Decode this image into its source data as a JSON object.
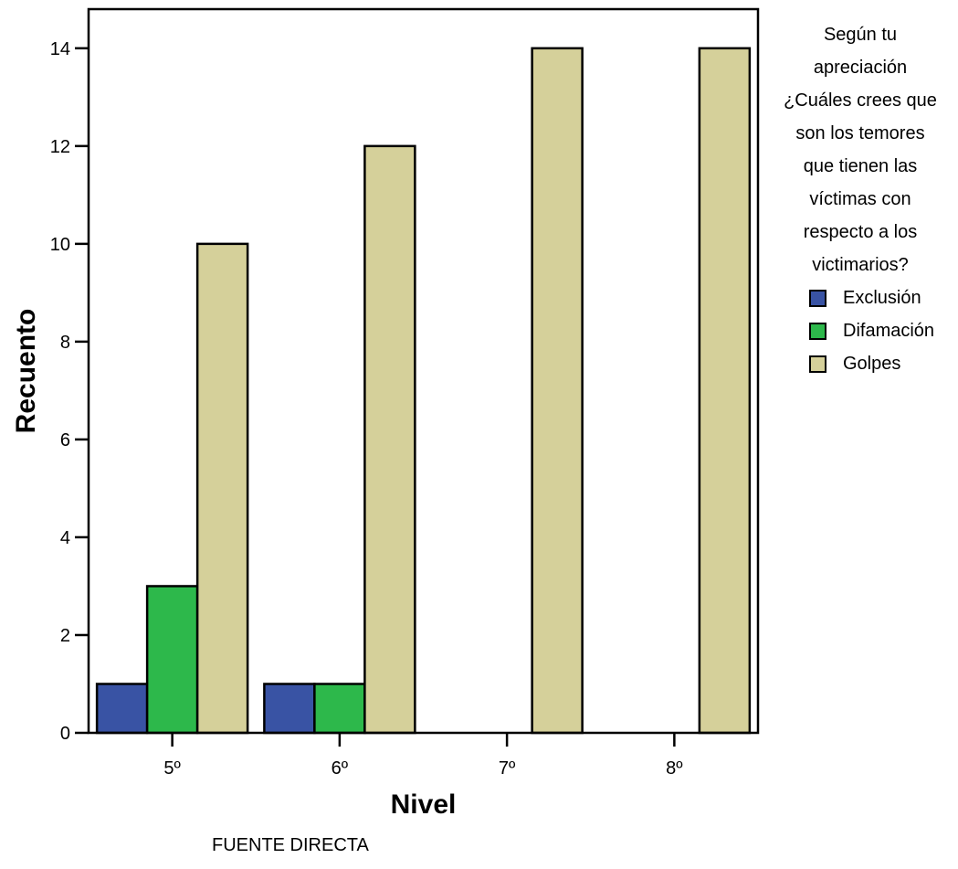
{
  "chart_data": {
    "type": "bar",
    "categories": [
      "5º",
      "6º",
      "7º",
      "8º"
    ],
    "series": [
      {
        "name": "Exclusión",
        "color": "#3953a4",
        "values": [
          1,
          1,
          0,
          0
        ]
      },
      {
        "name": "Difamación",
        "color": "#2db84b",
        "values": [
          3,
          1,
          0,
          0
        ]
      },
      {
        "name": "Golpes",
        "color": "#d5d09a",
        "values": [
          10,
          12,
          14,
          14
        ]
      }
    ],
    "xlabel": "Nivel",
    "ylabel": "Recuento",
    "ylim": [
      0,
      14.8
    ],
    "yticks": [
      0,
      2,
      4,
      6,
      8,
      10,
      12,
      14
    ],
    "grid": false,
    "legend_placement": "right",
    "legend_title_lines": [
      "Según tu",
      "apreciación",
      "¿Cuáles crees que",
      "son los temores",
      "que tienen las",
      "víctimas con",
      "respecto a los",
      "victimarios?"
    ]
  },
  "footer": {
    "source": "FUENTE DIRECTA"
  }
}
